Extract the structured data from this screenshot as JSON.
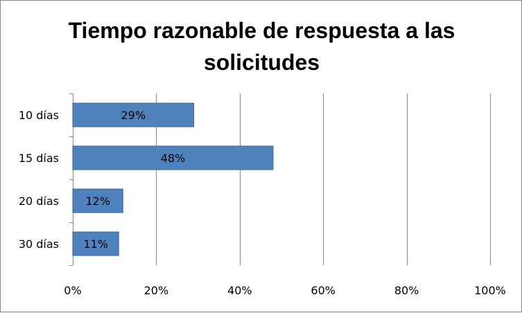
{
  "chart_data": {
    "type": "bar",
    "orientation": "horizontal",
    "title_lines": [
      "Tiempo razonable de respuesta a las",
      "solicitudes"
    ],
    "categories": [
      "10 días",
      "15 días",
      "20 días",
      "30 días"
    ],
    "values": [
      29,
      48,
      12,
      11
    ],
    "data_labels": [
      "29%",
      "48%",
      "12%",
      "11%"
    ],
    "xlim": [
      0,
      100
    ],
    "x_ticks": [
      0,
      20,
      40,
      60,
      80,
      100
    ],
    "x_tick_labels": [
      "0%",
      "20%",
      "40%",
      "60%",
      "80%",
      "100%"
    ],
    "grid": "vertical",
    "legend": "none",
    "colors": {
      "bar_fill": "#4f81bd",
      "bar_stroke": "#3a679e",
      "gridline": "#868686",
      "text": "#000000"
    }
  }
}
